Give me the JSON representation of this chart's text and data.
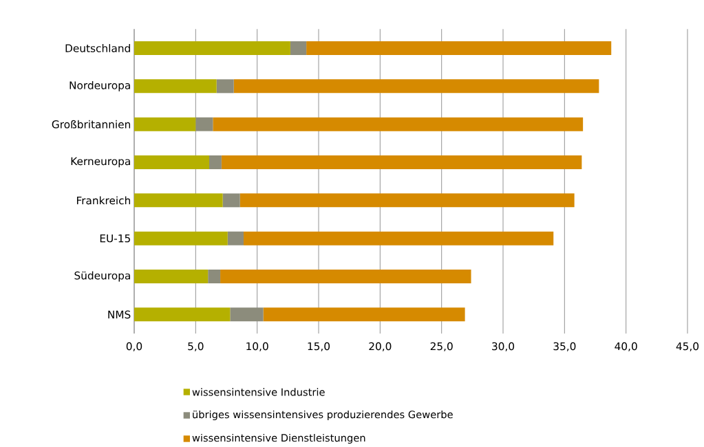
{
  "chart_data": {
    "type": "bar",
    "orientation": "horizontal",
    "stacked": true,
    "categories": [
      "Deutschland",
      "Nordeuropa",
      "Großbritannien",
      "Kerneuropa",
      "Frankreich",
      "EU-15",
      "Südeuropa",
      "NMS"
    ],
    "series": [
      {
        "name": "wissensintensive Industrie",
        "color": "#b5b000",
        "values": [
          12.7,
          6.7,
          5.0,
          6.1,
          7.2,
          7.6,
          6.0,
          7.8
        ]
      },
      {
        "name": "übriges wissensintensives produzierendes Gewerbe",
        "color": "#8c8c7c",
        "values": [
          1.3,
          1.4,
          1.4,
          1.0,
          1.4,
          1.3,
          1.0,
          2.7
        ]
      },
      {
        "name": "wissensintensive Dienstleistungen",
        "color": "#d68a00",
        "values": [
          24.8,
          29.7,
          30.1,
          29.3,
          27.2,
          25.2,
          20.4,
          16.4
        ]
      }
    ],
    "xlim": [
      0,
      45
    ],
    "xticks": [
      {
        "value": 0,
        "label": "0,0"
      },
      {
        "value": 5,
        "label": "5,0"
      },
      {
        "value": 10,
        "label": "10,0"
      },
      {
        "value": 15,
        "label": "15,0"
      },
      {
        "value": 20,
        "label": "20,0"
      },
      {
        "value": 25,
        "label": "25,0"
      },
      {
        "value": 30,
        "label": "30,0"
      },
      {
        "value": 35,
        "label": "35,0"
      },
      {
        "value": 40,
        "label": "40,0"
      },
      {
        "value": 45,
        "label": "45,0"
      }
    ],
    "grid": "x",
    "legend": "bottom"
  }
}
